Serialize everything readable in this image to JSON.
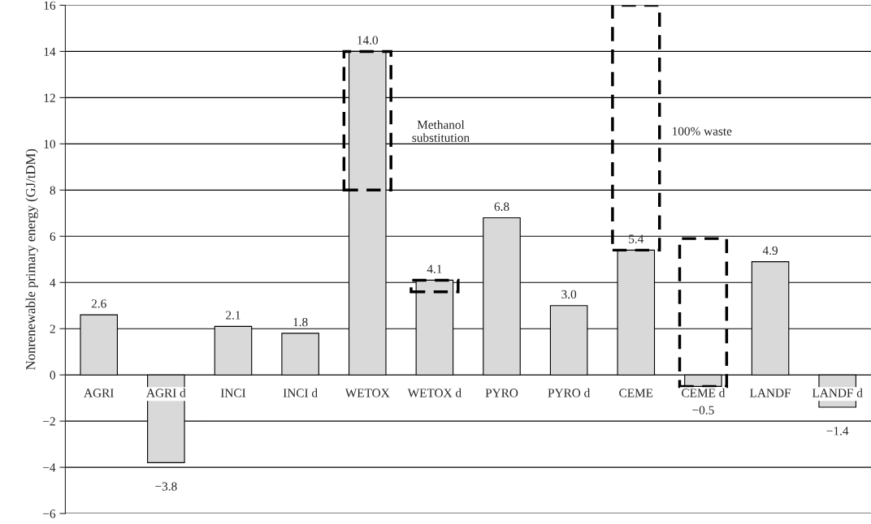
{
  "chart_data": {
    "type": "bar",
    "ylabel": "Nonrenewable primary energy (GJ/tDM)",
    "categories": [
      "AGRI",
      "AGRI d",
      "INCI",
      "INCI d",
      "WETOX",
      "WETOX d",
      "PYRO",
      "PYRO d",
      "CEME",
      "CEME d",
      "LANDF",
      "LANDF d"
    ],
    "series": [
      {
        "color": "#d9d9d9",
        "values": [
          2.6,
          -3.8,
          2.1,
          1.8,
          14.0,
          4.1,
          6.8,
          3.0,
          5.4,
          -0.5,
          4.9,
          -1.4
        ],
        "value_labels": [
          "2.6",
          "−3.8",
          "2.1",
          "1.8",
          "14.0",
          "4.1",
          "6.8",
          "3.0",
          "5.4",
          "−0.5",
          "4.9",
          "−1.4"
        ]
      },
      {
        "color": "#000000",
        "line_style": "dashed",
        "values": [
          null,
          null,
          null,
          null,
          6,
          0.5,
          null,
          null,
          10.6,
          6.4,
          null,
          null
        ],
        "base": [
          null,
          null,
          null,
          null,
          8,
          3.6,
          null,
          null,
          5.4,
          -0.5,
          null,
          null
        ]
      }
    ],
    "annotations": [
      "Methanol\nsubstitution",
      "100% waste"
    ],
    "ylim": [
      -6,
      16
    ],
    "yticks": [
      {
        "value": -6,
        "label": "−6"
      },
      {
        "value": -4,
        "label": "−4"
      },
      {
        "value": -2,
        "label": "−2"
      },
      0,
      2,
      4,
      6,
      8,
      10,
      12,
      14,
      16
    ],
    "grid": "y",
    "legend": false
  }
}
